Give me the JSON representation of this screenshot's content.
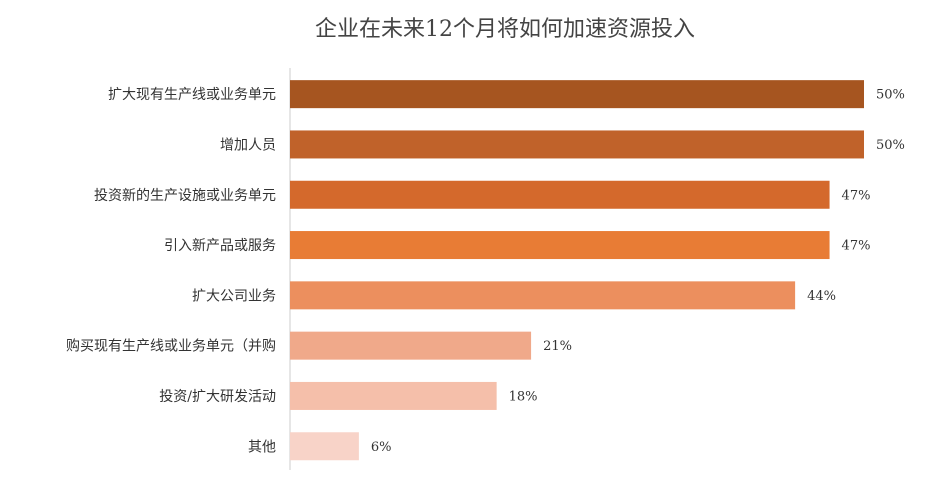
{
  "chart_data": {
    "type": "bar",
    "orientation": "horizontal",
    "title": "企业在未来12个月将如何加速资源投入",
    "categories": [
      "扩大现有生产线或业务单元",
      "增加人员",
      "投资新的生产设施或业务单元",
      "引入新产品或服务",
      "扩大公司业务",
      "购买现有生产线或业务单元（并购",
      "投资/扩大研发活动",
      "其他"
    ],
    "values": [
      50,
      50,
      47,
      47,
      44,
      21,
      18,
      6
    ],
    "value_labels": [
      "50%",
      "50%",
      "47%",
      "47%",
      "44%",
      "21%",
      "18%",
      "6%"
    ],
    "colors": [
      "#a65520",
      "#c0622a",
      "#d4692c",
      "#e87c35",
      "#ec8f5e",
      "#f0a98a",
      "#f5bfaa",
      "#f8d3c8"
    ]
  }
}
